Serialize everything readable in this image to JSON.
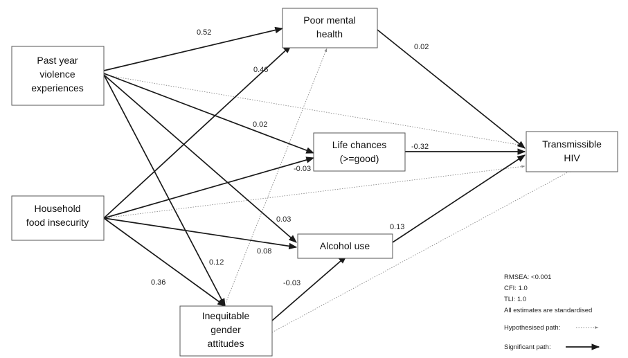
{
  "nodes": {
    "violence": [
      "Past year",
      "violence",
      "experiences"
    ],
    "food": [
      "Household",
      "food insecurity"
    ],
    "gender": [
      "Inequitable",
      "gender",
      "attitudes"
    ],
    "mental": [
      "Poor mental",
      "health"
    ],
    "life": [
      "Life chances",
      "(>=good)"
    ],
    "alcohol": [
      "Alcohol use"
    ],
    "hiv": [
      "Transmissible",
      "HIV"
    ]
  },
  "coefficients": {
    "violence_mental": "0.52",
    "food_mental": "0.46",
    "mental_hiv": "0.02",
    "violence_life": "0.02",
    "life_hiv": "-0.32",
    "food_life": "-0.03",
    "violence_alcohol": "0.03",
    "alcohol_hiv": "0.13",
    "food_alcohol": "0.08",
    "violence_gender": "0.12",
    "food_gender": "0.36",
    "gender_alcohol": "-0.03"
  },
  "paths": [
    {
      "from": "violence",
      "to": "mental",
      "type": "significant"
    },
    {
      "from": "violence",
      "to": "life",
      "type": "significant"
    },
    {
      "from": "violence",
      "to": "alcohol",
      "type": "significant"
    },
    {
      "from": "violence",
      "to": "gender",
      "type": "significant"
    },
    {
      "from": "violence",
      "to": "hiv",
      "type": "hypothesised"
    },
    {
      "from": "food",
      "to": "mental",
      "type": "significant"
    },
    {
      "from": "food",
      "to": "life",
      "type": "significant"
    },
    {
      "from": "food",
      "to": "alcohol",
      "type": "significant"
    },
    {
      "from": "food",
      "to": "gender",
      "type": "significant"
    },
    {
      "from": "food",
      "to": "hiv",
      "type": "hypothesised"
    },
    {
      "from": "gender",
      "to": "mental",
      "type": "hypothesised"
    },
    {
      "from": "gender",
      "to": "alcohol",
      "type": "significant"
    },
    {
      "from": "gender",
      "to": "hiv",
      "type": "hypothesised"
    },
    {
      "from": "mental",
      "to": "hiv",
      "type": "significant"
    },
    {
      "from": "life",
      "to": "hiv",
      "type": "significant"
    },
    {
      "from": "alcohol",
      "to": "hiv",
      "type": "significant"
    }
  ],
  "fit_stats": {
    "rmsea": "RMSEA: <0.001",
    "cfi": "CFI: 1.0",
    "tli": "TLI: 1.0",
    "note": "All estimates are standardised"
  },
  "legend": {
    "hypothesised": "Hypothesised path:",
    "significant": "Significant path:"
  },
  "colors": {
    "significant": "#1a1a1a",
    "hypothesised": "#8a8a8a",
    "box_border": "#555555"
  }
}
